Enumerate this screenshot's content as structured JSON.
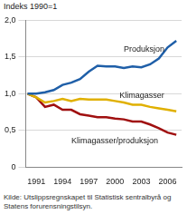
{
  "chart_data": {
    "type": "line",
    "ylabel": "Indeks 1990=1",
    "source": "Kilde: Utslippsregnskapet til Statistisk sentralbyrå og Statens forurensningstilsyn.",
    "x": [
      1990,
      1991,
      1992,
      1993,
      1994,
      1995,
      1996,
      1997,
      1998,
      1999,
      2000,
      2001,
      2002,
      2003,
      2004,
      2005,
      2006,
      2007
    ],
    "series": [
      {
        "name": "Produksjon",
        "color": "#1f5fa8",
        "values": [
          1.0,
          1.0,
          1.02,
          1.05,
          1.12,
          1.15,
          1.2,
          1.3,
          1.38,
          1.37,
          1.37,
          1.35,
          1.37,
          1.36,
          1.4,
          1.48,
          1.63,
          1.72
        ]
      },
      {
        "name": "Klimagasser",
        "color": "#e0b000",
        "values": [
          1.0,
          0.95,
          0.88,
          0.9,
          0.93,
          0.9,
          0.93,
          0.92,
          0.92,
          0.92,
          0.9,
          0.88,
          0.85,
          0.85,
          0.82,
          0.8,
          0.78,
          0.76
        ]
      },
      {
        "name": "Klimagasser/produksjon",
        "color": "#a01010",
        "values": [
          1.0,
          0.95,
          0.82,
          0.85,
          0.78,
          0.78,
          0.72,
          0.7,
          0.68,
          0.68,
          0.66,
          0.65,
          0.62,
          0.62,
          0.58,
          0.53,
          0.47,
          0.44
        ]
      }
    ],
    "annotations": [
      {
        "text": "Produksjon",
        "x": 2001,
        "y": 1.6
      },
      {
        "text": "Klimagasser",
        "x": 2000.5,
        "y": 0.97
      },
      {
        "text": "Klimagasser/produksjon",
        "x": 1995,
        "y": 0.36
      }
    ],
    "xlim": [
      1989.8,
      2007.6
    ],
    "xticks": [
      1991,
      1994,
      1997,
      2000,
      2003,
      2006
    ],
    "ylim": [
      0,
      2
    ],
    "yticks": [
      0,
      {
        "value": 0.5,
        "label": "0,5"
      },
      {
        "value": 1,
        "label": "1,0"
      },
      {
        "value": 1.5,
        "label": "1,5"
      },
      {
        "value": 2,
        "label": "2,0"
      }
    ],
    "grid": true
  }
}
